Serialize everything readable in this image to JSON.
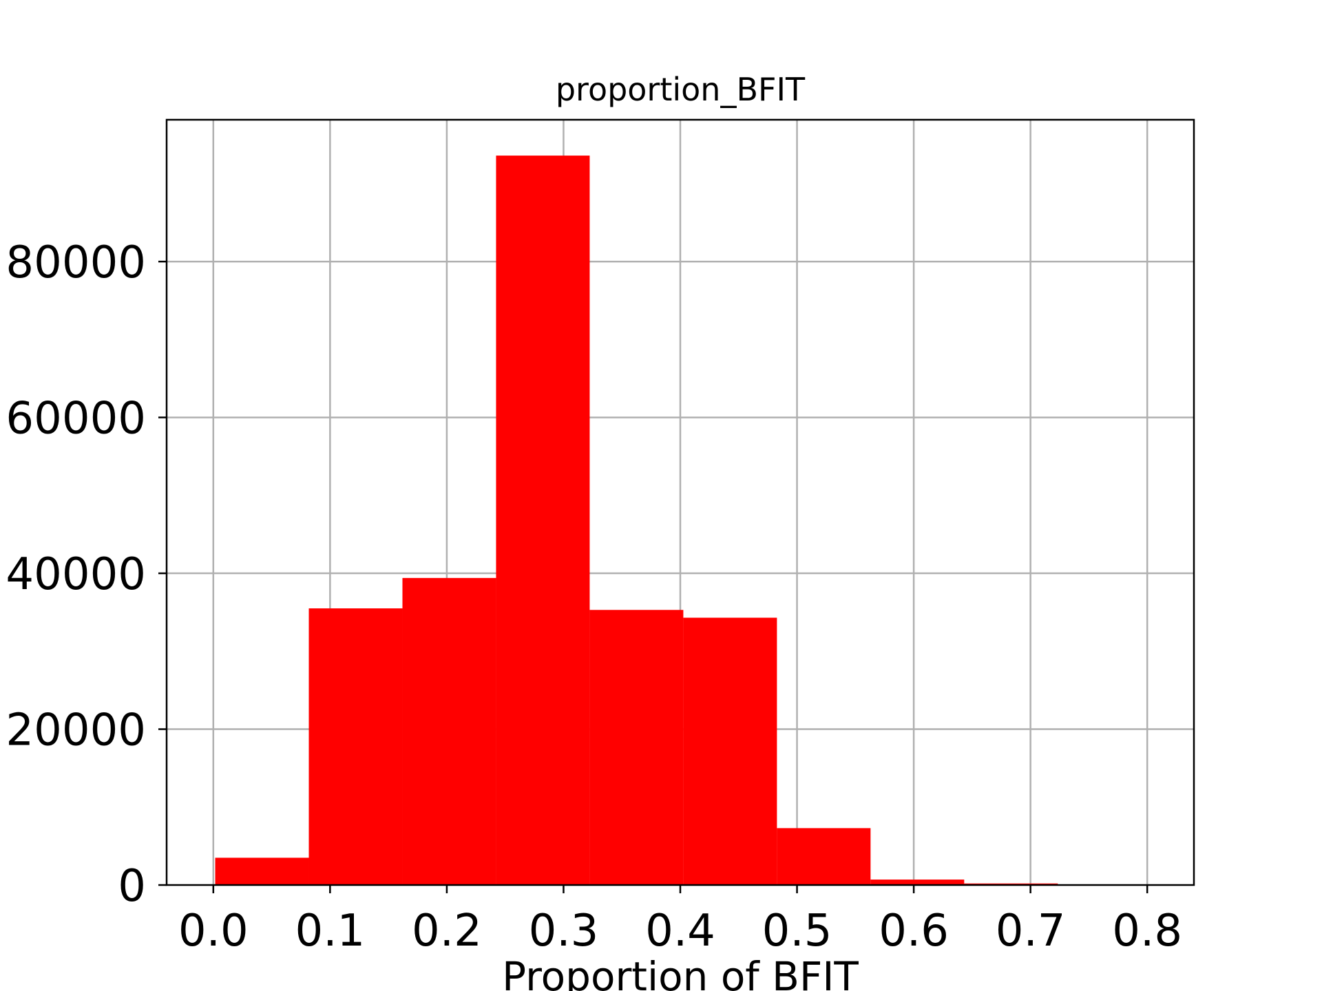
{
  "chart_data": {
    "type": "bar",
    "title": "proportion_BFIT",
    "xlabel": "Proportion of BFIT",
    "ylabel": "",
    "bin_edges": [
      0.0016,
      0.0818,
      0.162,
      0.2422,
      0.3224,
      0.4026,
      0.4828,
      0.563,
      0.6432,
      0.7234,
      0.8036
    ],
    "values": [
      3500,
      35500,
      39400,
      93600,
      35300,
      34300,
      7300,
      700,
      200,
      50
    ],
    "xlim": [
      -0.04,
      0.84
    ],
    "ylim": [
      0,
      98200
    ],
    "xticks": [
      "0.0",
      "0.1",
      "0.2",
      "0.3",
      "0.4",
      "0.5",
      "0.6",
      "0.7",
      "0.8"
    ],
    "yticks": [
      "0",
      "20000",
      "40000",
      "60000",
      "80000"
    ],
    "bar_color": "#ff0000",
    "grid": true,
    "legend": false
  }
}
